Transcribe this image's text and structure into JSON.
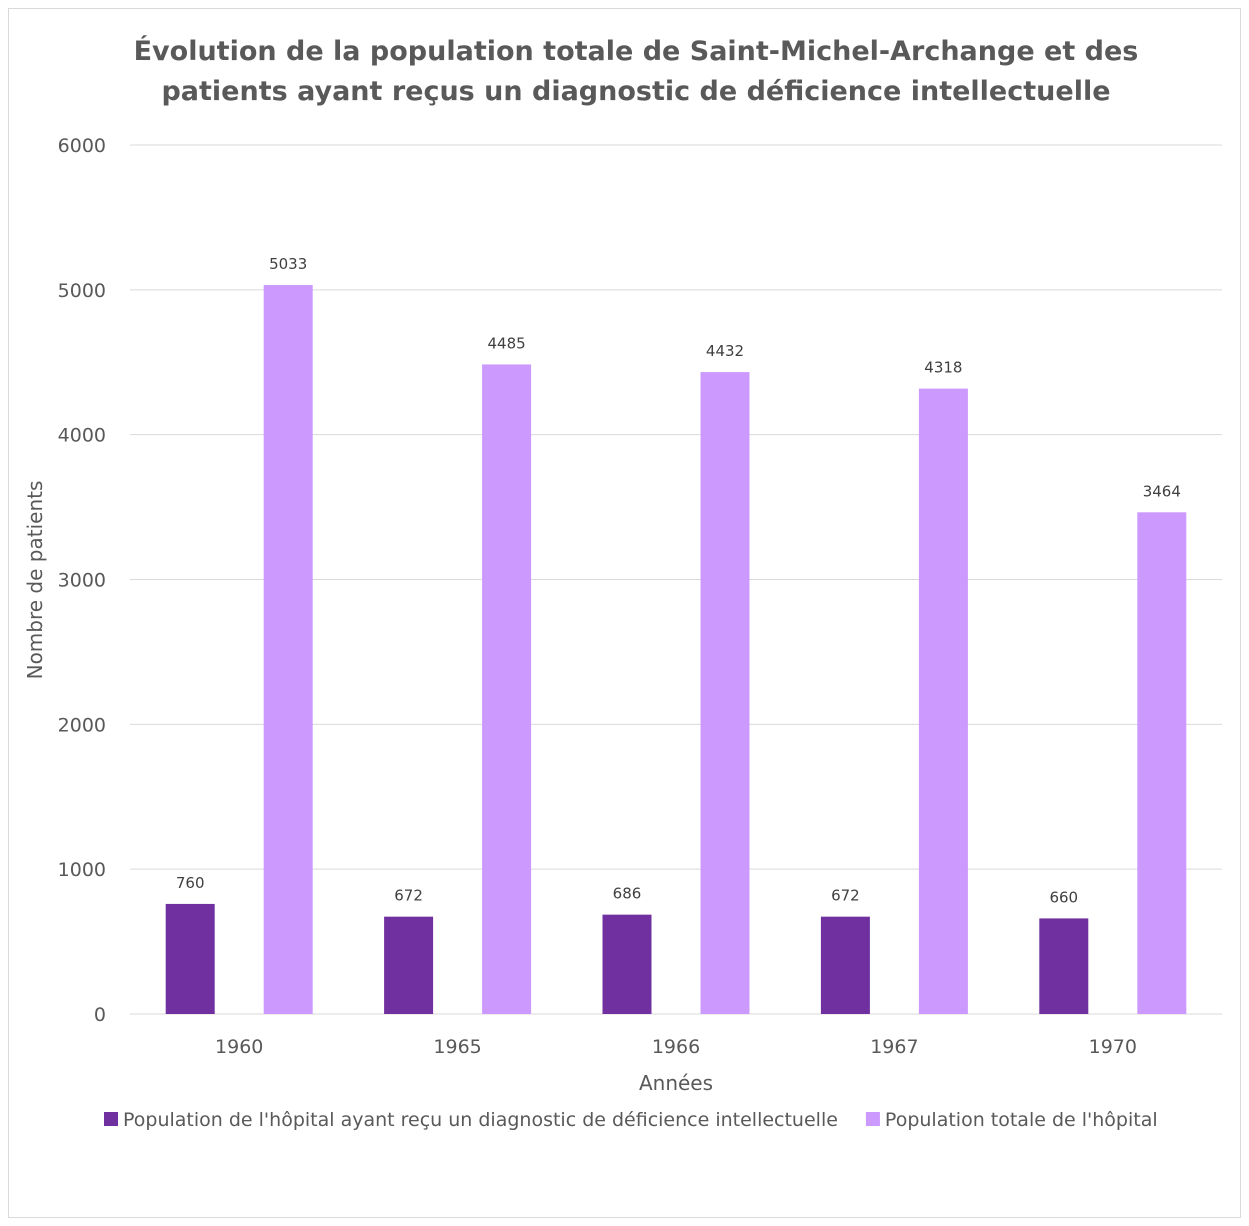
{
  "chart_data": {
    "type": "bar",
    "title": "Évolution de la population totale de Saint-Michel-Archange et des patients ayant reçus un diagnostic de déficience intellectuelle",
    "title_lines": [
      "Évolution de la population totale de Saint-Michel-Archange et des",
      "patients ayant reçus un diagnostic de déficience intellectuelle"
    ],
    "xlabel": "Années",
    "ylabel": "Nombre de patients",
    "categories": [
      "1960",
      "1965",
      "1966",
      "1967",
      "1970"
    ],
    "ylim": [
      0,
      6000
    ],
    "yticks": [
      0,
      1000,
      2000,
      3000,
      4000,
      5000,
      6000
    ],
    "grid": true,
    "legend_position": "bottom",
    "data_labels": true,
    "series": [
      {
        "name": "Population de l'hôpital ayant reçu un diagnostic de déficience intellectuelle",
        "values": [
          760,
          672,
          686,
          672,
          660
        ],
        "color": "#7030a0"
      },
      {
        "name": "Population totale de l'hôpital",
        "values": [
          5033,
          4485,
          4432,
          4318,
          3464
        ],
        "color": "#cc99ff"
      }
    ]
  }
}
